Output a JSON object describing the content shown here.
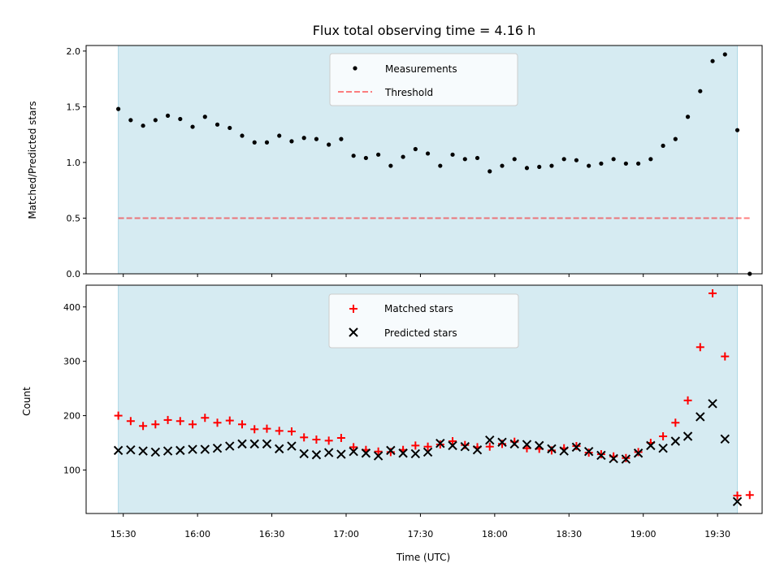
{
  "chart_data": {
    "title": "Flux total observing time = 4.16 h",
    "x_unit": "time (UTC)",
    "xlim": [
      "15:15",
      "19:48"
    ],
    "x_ticks": [
      "15:30",
      "16:00",
      "16:30",
      "17:00",
      "17:30",
      "18:00",
      "18:30",
      "19:00",
      "19:30"
    ],
    "xlabel": "Time (UTC)",
    "shaded_span": [
      "15:28",
      "19:38"
    ],
    "colors": {
      "shade": "#add8e6",
      "measurements": "#000000",
      "threshold": "#ff0000",
      "matched": "#ff0000",
      "predicted": "#000000"
    },
    "panels": [
      {
        "type": "scatter",
        "ylabel": "Matched/Predicted stars",
        "ylim": [
          0,
          2.05
        ],
        "y_ticks": [
          "0.0",
          "0.5",
          "1.0",
          "1.5",
          "2.0"
        ],
        "x_tick_labels_shown": false,
        "legend": "upper center",
        "threshold": {
          "name": "Threshold",
          "value": 0.5,
          "x": [
            "15:28",
            "19:43"
          ]
        },
        "series": [
          {
            "name": "Measurements",
            "marker": "dot",
            "points": [
              [
                "15:28",
                1.48
              ],
              [
                "15:33",
                1.38
              ],
              [
                "15:38",
                1.33
              ],
              [
                "15:43",
                1.38
              ],
              [
                "15:48",
                1.42
              ],
              [
                "15:53",
                1.39
              ],
              [
                "15:58",
                1.32
              ],
              [
                "16:03",
                1.41
              ],
              [
                "16:08",
                1.34
              ],
              [
                "16:13",
                1.31
              ],
              [
                "16:18",
                1.24
              ],
              [
                "16:23",
                1.18
              ],
              [
                "16:28",
                1.18
              ],
              [
                "16:33",
                1.24
              ],
              [
                "16:38",
                1.19
              ],
              [
                "16:43",
                1.22
              ],
              [
                "16:48",
                1.21
              ],
              [
                "16:53",
                1.16
              ],
              [
                "16:58",
                1.21
              ],
              [
                "17:03",
                1.06
              ],
              [
                "17:08",
                1.04
              ],
              [
                "17:13",
                1.07
              ],
              [
                "17:18",
                0.97
              ],
              [
                "17:23",
                1.05
              ],
              [
                "17:28",
                1.12
              ],
              [
                "17:33",
                1.08
              ],
              [
                "17:38",
                0.97
              ],
              [
                "17:43",
                1.07
              ],
              [
                "17:48",
                1.03
              ],
              [
                "17:53",
                1.04
              ],
              [
                "17:58",
                0.92
              ],
              [
                "18:03",
                0.97
              ],
              [
                "18:08",
                1.03
              ],
              [
                "18:13",
                0.95
              ],
              [
                "18:18",
                0.96
              ],
              [
                "18:23",
                0.97
              ],
              [
                "18:28",
                1.03
              ],
              [
                "18:33",
                1.02
              ],
              [
                "18:38",
                0.97
              ],
              [
                "18:43",
                0.99
              ],
              [
                "18:48",
                1.03
              ],
              [
                "18:53",
                0.99
              ],
              [
                "18:58",
                0.99
              ],
              [
                "19:03",
                1.03
              ],
              [
                "19:08",
                1.15
              ],
              [
                "19:13",
                1.21
              ],
              [
                "19:18",
                1.41
              ],
              [
                "19:23",
                1.64
              ],
              [
                "19:28",
                1.91
              ],
              [
                "19:33",
                1.97
              ],
              [
                "19:38",
                1.29
              ],
              [
                "19:43",
                0.0
              ]
            ]
          }
        ]
      },
      {
        "type": "scatter",
        "ylabel": "Count",
        "ylim": [
          20,
          440
        ],
        "y_ticks": [
          "100",
          "200",
          "300",
          "400"
        ],
        "legend": "upper center",
        "series": [
          {
            "name": "Matched stars",
            "marker": "plus",
            "points": [
              [
                "15:28",
                200
              ],
              [
                "15:33",
                190
              ],
              [
                "15:38",
                181
              ],
              [
                "15:43",
                184
              ],
              [
                "15:48",
                192
              ],
              [
                "15:53",
                190
              ],
              [
                "15:58",
                184
              ],
              [
                "16:03",
                196
              ],
              [
                "16:08",
                187
              ],
              [
                "16:13",
                191
              ],
              [
                "16:18",
                184
              ],
              [
                "16:23",
                175
              ],
              [
                "16:28",
                176
              ],
              [
                "16:33",
                172
              ],
              [
                "16:38",
                171
              ],
              [
                "16:43",
                160
              ],
              [
                "16:48",
                156
              ],
              [
                "16:53",
                154
              ],
              [
                "16:58",
                159
              ],
              [
                "17:03",
                142
              ],
              [
                "17:08",
                137
              ],
              [
                "17:13",
                134
              ],
              [
                "17:18",
                133
              ],
              [
                "17:23",
                137
              ],
              [
                "17:28",
                145
              ],
              [
                "17:33",
                143
              ],
              [
                "17:38",
                147
              ],
              [
                "17:43",
                153
              ],
              [
                "17:48",
                146
              ],
              [
                "17:53",
                142
              ],
              [
                "17:58",
                143
              ],
              [
                "18:03",
                148
              ],
              [
                "18:08",
                152
              ],
              [
                "18:13",
                140
              ],
              [
                "18:18",
                139
              ],
              [
                "18:23",
                136
              ],
              [
                "18:28",
                140
              ],
              [
                "18:33",
                144
              ],
              [
                "18:38",
                132
              ],
              [
                "18:43",
                129
              ],
              [
                "18:48",
                125
              ],
              [
                "18:53",
                122
              ],
              [
                "18:58",
                133
              ],
              [
                "19:03",
                150
              ],
              [
                "19:08",
                162
              ],
              [
                "19:13",
                187
              ],
              [
                "19:18",
                228
              ],
              [
                "19:23",
                326
              ],
              [
                "19:28",
                425
              ],
              [
                "19:33",
                309
              ],
              [
                "19:38",
                53
              ],
              [
                "19:43",
                54
              ]
            ]
          },
          {
            "name": "Predicted stars",
            "marker": "x",
            "points": [
              [
                "15:28",
                136
              ],
              [
                "15:33",
                137
              ],
              [
                "15:38",
                135
              ],
              [
                "15:43",
                133
              ],
              [
                "15:48",
                135
              ],
              [
                "15:53",
                136
              ],
              [
                "15:58",
                138
              ],
              [
                "16:03",
                138
              ],
              [
                "16:08",
                140
              ],
              [
                "16:13",
                144
              ],
              [
                "16:18",
                148
              ],
              [
                "16:23",
                148
              ],
              [
                "16:28",
                148
              ],
              [
                "16:33",
                139
              ],
              [
                "16:38",
                144
              ],
              [
                "16:43",
                130
              ],
              [
                "16:48",
                128
              ],
              [
                "16:53",
                132
              ],
              [
                "16:58",
                129
              ],
              [
                "17:03",
                134
              ],
              [
                "17:08",
                131
              ],
              [
                "17:13",
                126
              ],
              [
                "17:18",
                136
              ],
              [
                "17:23",
                131
              ],
              [
                "17:28",
                130
              ],
              [
                "17:33",
                133
              ],
              [
                "17:38",
                149
              ],
              [
                "17:43",
                145
              ],
              [
                "17:48",
                143
              ],
              [
                "17:53",
                137
              ],
              [
                "17:58",
                155
              ],
              [
                "18:03",
                151
              ],
              [
                "18:08",
                148
              ],
              [
                "18:13",
                147
              ],
              [
                "18:18",
                145
              ],
              [
                "18:23",
                139
              ],
              [
                "18:28",
                135
              ],
              [
                "18:33",
                142
              ],
              [
                "18:38",
                134
              ],
              [
                "18:43",
                127
              ],
              [
                "18:48",
                121
              ],
              [
                "18:53",
                120
              ],
              [
                "18:58",
                131
              ],
              [
                "19:03",
                145
              ],
              [
                "19:08",
                140
              ],
              [
                "19:13",
                153
              ],
              [
                "19:18",
                162
              ],
              [
                "19:23",
                198
              ],
              [
                "19:28",
                222
              ],
              [
                "19:33",
                157
              ],
              [
                "19:38",
                42
              ]
            ]
          }
        ]
      }
    ]
  }
}
